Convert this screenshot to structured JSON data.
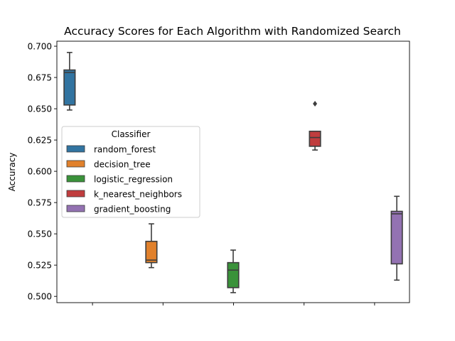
{
  "chart_data": {
    "type": "box",
    "title": "Accuracy Scores for Each Algorithm with Randomized Search",
    "xlabel": "",
    "ylabel": "Accuracy",
    "ylim": [
      0.495,
      0.704
    ],
    "yticks": [
      "0.500",
      "0.525",
      "0.550",
      "0.575",
      "0.600",
      "0.625",
      "0.650",
      "0.675",
      "0.700"
    ],
    "ytick_values": [
      0.5,
      0.525,
      0.55,
      0.575,
      0.6,
      0.625,
      0.65,
      0.675,
      0.7
    ],
    "grid": false,
    "legend": {
      "title": "Classifier",
      "placement": "center-left"
    },
    "series": [
      {
        "name": "random_forest",
        "color": "#3274a1",
        "group": 0,
        "whisker_low": 0.649,
        "q1": 0.653,
        "median": 0.679,
        "q3": 0.681,
        "whisker_high": 0.695,
        "outliers": []
      },
      {
        "name": "decision_tree",
        "color": "#e1812c",
        "group": 1,
        "whisker_low": 0.523,
        "q1": 0.527,
        "median": 0.529,
        "q3": 0.544,
        "whisker_high": 0.558,
        "outliers": []
      },
      {
        "name": "logistic_regression",
        "color": "#3a923a",
        "group": 2,
        "whisker_low": 0.503,
        "q1": 0.507,
        "median": 0.521,
        "q3": 0.527,
        "whisker_high": 0.537,
        "outliers": []
      },
      {
        "name": "k_nearest_neighbors",
        "color": "#c03d3e",
        "group": 3,
        "whisker_low": 0.617,
        "q1": 0.62,
        "median": 0.627,
        "q3": 0.632,
        "whisker_high": 0.632,
        "outliers": [
          0.654
        ]
      },
      {
        "name": "gradient_boosting",
        "color": "#9372b2",
        "group": 4,
        "whisker_low": 0.513,
        "q1": 0.526,
        "median": 0.566,
        "q3": 0.568,
        "whisker_high": 0.58,
        "outliers": []
      }
    ]
  }
}
